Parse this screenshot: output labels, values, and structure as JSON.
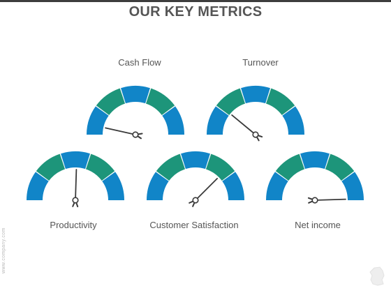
{
  "title": "OUR KEY METRICS",
  "colors": {
    "blue": "#1185c8",
    "green": "#1d957a",
    "needle": "#3a3a3a",
    "label": "#555555"
  },
  "gauges": [
    {
      "id": "cash-flow",
      "label": "Cash Flow",
      "level": 0.07
    },
    {
      "id": "turnover",
      "label": "Turnover",
      "level": 0.22
    },
    {
      "id": "productivity",
      "label": "Productivity",
      "level": 0.51
    },
    {
      "id": "customer-satisfaction",
      "label": "Customer Satisfaction",
      "level": 0.75
    },
    {
      "id": "net-income",
      "label": "Net income",
      "level": 0.99
    }
  ],
  "footer": {
    "side_text": "www.company.com"
  }
}
